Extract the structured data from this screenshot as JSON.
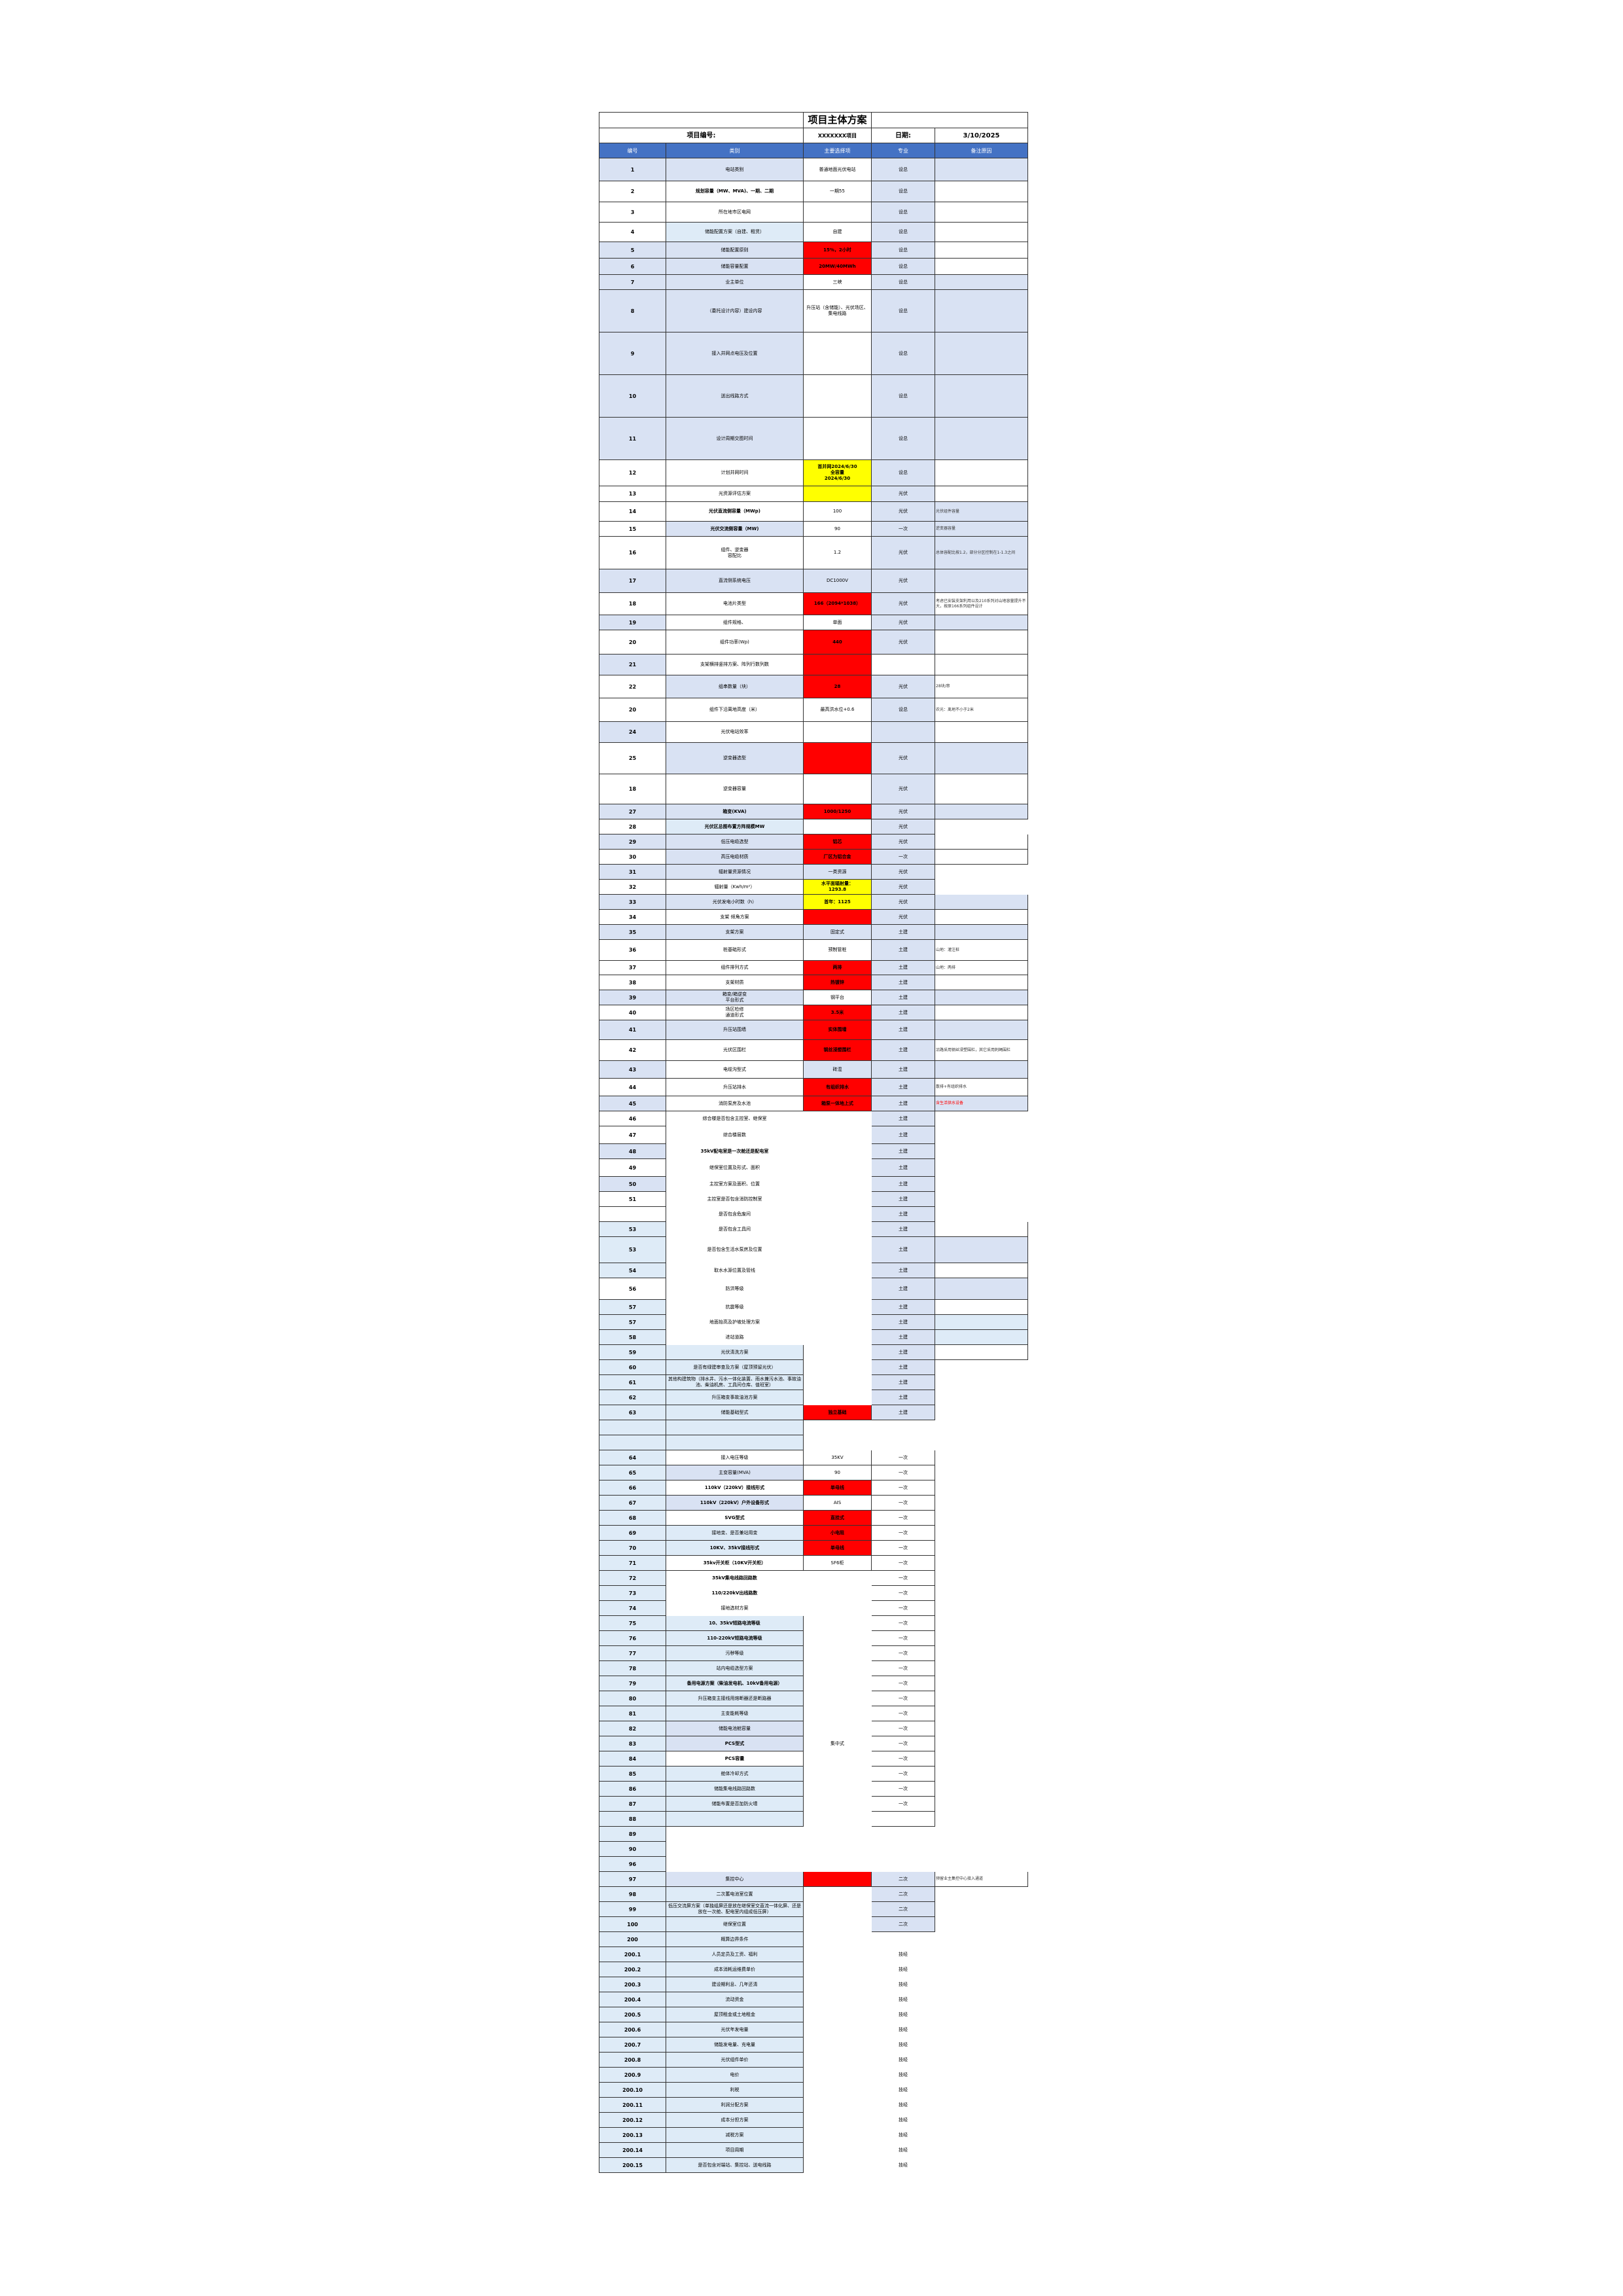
{
  "title": "项目主体方案",
  "project_label": "项目编号:",
  "project_value": "XXXXXXX项目",
  "date_label": "日期:",
  "date_value": "3/10/2025",
  "headers": [
    "编号",
    "类别",
    "主要选择项",
    "专业",
    "备注原因"
  ],
  "colors": {
    "header": "#4472C4",
    "blue": "#D9E2F3",
    "light": "#DEEBF7",
    "white": "#FFFFFF",
    "red": "#FF0000",
    "yellow": "#FFFF00",
    "remark_red": "#FF0000"
  },
  "rows": [
    {
      "no": "1",
      "cat": "电站类别",
      "choice": "普通地面光伏电站",
      "disc": "设总",
      "rem": "",
      "fills": "bbwbb"
    },
    {
      "no": "2",
      "cat": "规划容量（MW、MVA)、一期、二期",
      "choice": "一期55",
      "disc": "设总",
      "rem": "",
      "fills": "wwwbw"
    },
    {
      "no": "3",
      "cat": "所在地市区电网",
      "choice": "",
      "disc": "设总",
      "rem": "",
      "fills": "wwwbw"
    },
    {
      "no": "4",
      "cat": "储能配置方案（自建、租赁）",
      "choice": "自建",
      "disc": "设总",
      "rem": "",
      "fills": "wlwbw"
    },
    {
      "no": "5",
      "cat": "储能配置原则",
      "choice": "15%，2小时",
      "disc": "设总",
      "rem": "",
      "fills": "bbrbw"
    },
    {
      "no": "6",
      "cat": "储能容量配置",
      "choice": "20MW/40MWh",
      "disc": "设总",
      "rem": "",
      "fills": "bbrbw"
    },
    {
      "no": "7",
      "cat": "业主单位",
      "choice": "三峡",
      "disc": "设总",
      "rem": "",
      "fills": "bbwbb"
    },
    {
      "no": "8",
      "cat": "（委托设计内容）建设内容",
      "choice": "升压站（含储能）、光伏场区、集电线路",
      "disc": "设总",
      "rem": "",
      "fills": "bbwbb"
    },
    {
      "no": "9",
      "cat": "接入并网点电压及位置",
      "choice": "",
      "disc": "设总",
      "rem": "",
      "fills": "bbwbb"
    },
    {
      "no": "10",
      "cat": "送出线路方式",
      "choice": "",
      "disc": "设总",
      "rem": "",
      "fills": "bbwbb"
    },
    {
      "no": "11",
      "cat": "设计周期交图时间",
      "choice": "",
      "disc": "设总",
      "rem": "",
      "fills": "bbwbb"
    },
    {
      "no": "12",
      "cat": "计划并网时间",
      "choice": "首并网2024/6/30\n全容量\n2024/6/30",
      "disc": "设总",
      "rem": "",
      "fills": "wwybw"
    },
    {
      "no": "13",
      "cat": "光资源评估方案",
      "choice": "",
      "disc": "光伏",
      "rem": "",
      "fills": "wwybw"
    },
    {
      "no": "14",
      "cat": "光伏直流侧容量（MWp)",
      "choice": "100",
      "disc": "光伏",
      "rem": "光伏组件容量",
      "fills": "wwwbb"
    },
    {
      "no": "15",
      "cat": "光伏交流侧容量（MW)",
      "choice": "90",
      "disc": "一次",
      "rem": "逆变器容量",
      "fills": "wbwbb"
    },
    {
      "no": "16",
      "cat": "组件、逆变器\n容配比",
      "choice": "1.2",
      "disc": "光伏",
      "rem": "总体容配比按1.2，部分分区控制在1-1.3之间",
      "fills": "wwwbb"
    },
    {
      "no": "17",
      "cat": "直流侧系统电压",
      "choice": "DC1000V",
      "disc": "光伏",
      "rem": "",
      "fills": "bbbbb"
    },
    {
      "no": "18",
      "cat": "电池片类型",
      "choice": "166（2094*1038）",
      "disc": "光伏",
      "rem": "考虑已安装支架利用以及210系列对山地容量提升不大，按原166系列组件设计",
      "fills": "wwrbw"
    },
    {
      "no": "19",
      "cat": "组件规格、",
      "choice": "单面",
      "disc": "光伏",
      "rem": "",
      "fills": "bwwbb"
    },
    {
      "no": "20",
      "cat": "组件功率(Wp)",
      "choice": "440",
      "disc": "光伏",
      "rem": "",
      "fills": "wwrbw"
    },
    {
      "no": "21",
      "cat": "支架横排竖排方案、阵列行数列数",
      "choice": "",
      "disc": "",
      "rem": "",
      "fills": "bwrww"
    },
    {
      "no": "22",
      "cat": "组串数量（块）",
      "choice": "28",
      "disc": "光伏",
      "rem": "28块/串",
      "fills": "wbrbw"
    },
    {
      "no": "20",
      "cat": "组件下沿离地高度（米）",
      "choice": "最高洪水位+0.6",
      "disc": "设总",
      "rem": "农光：离地不小于2米",
      "fills": "wwwbw"
    },
    {
      "no": "24",
      "cat": "光伏电站效率",
      "choice": "",
      "disc": "",
      "rem": "",
      "fills": "bwwbw"
    },
    {
      "no": "25",
      "cat": "逆变器选型",
      "choice": "",
      "disc": "光伏",
      "rem": "",
      "fills": "wbrbb"
    },
    {
      "no": "18",
      "cat": "逆变器容量",
      "choice": "",
      "disc": "光伏",
      "rem": "",
      "fills": "wwwbw"
    },
    {
      "no": "27",
      "cat": "箱变(KVA)",
      "choice": "1000/1250",
      "disc": "光伏",
      "rem": "",
      "fills": "bbrbb"
    },
    {
      "no": "28",
      "cat": "光伏区总图布置方阵规模MW",
      "choice": "",
      "disc": "光伏",
      "rem": "",
      "fills": "wlwbn"
    },
    {
      "no": "29",
      "cat": "低压电缆选型",
      "choice": "铝芯",
      "disc": "光伏",
      "rem": "",
      "fills": "bbrbw"
    },
    {
      "no": "30",
      "cat": "高压电缆材质",
      "choice": "厂区为铝合金",
      "disc": "一次",
      "rem": "",
      "fills": "wbrbw"
    },
    {
      "no": "31",
      "cat": "辐射量资源情况",
      "choice": "一类资源",
      "disc": "光伏",
      "rem": "",
      "fills": "bbbbn"
    },
    {
      "no": "32",
      "cat": "辐射量（Kwh/m²）",
      "choice": "水平面辐射量：\n1293.8",
      "disc": "光伏",
      "rem": "",
      "fills": "wwybn"
    },
    {
      "no": "33",
      "cat": "光伏发电小时数（h）",
      "choice": "首年：1125",
      "disc": "光伏",
      "rem": "",
      "fills": "bbybb"
    },
    {
      "no": "34",
      "cat": "支架 倾角方案",
      "choice": "",
      "disc": "光伏",
      "rem": "",
      "fills": "wwrbw"
    },
    {
      "no": "35",
      "cat": "支架方案",
      "choice": "固定式",
      "disc": "土建",
      "rem": "",
      "fills": "bbbbb"
    },
    {
      "no": "36",
      "cat": "桩基础形式",
      "choice": "预制管桩",
      "disc": "土建",
      "rem": "山地：灌注桩",
      "fills": "wwwbw"
    },
    {
      "no": "37",
      "cat": "组件排列方式",
      "choice": "两排",
      "disc": "土建",
      "rem": "山地：两排",
      "fills": "wwrbw"
    },
    {
      "no": "38",
      "cat": "支架材质",
      "choice": "热镀锌",
      "disc": "土建",
      "rem": "",
      "fills": "wwrbw"
    },
    {
      "no": "39",
      "cat": "箱变/箱逆变\n平台形式",
      "choice": "钢平台",
      "disc": "土建",
      "rem": "",
      "fills": "bbwbb"
    },
    {
      "no": "40",
      "cat": "场区检修\n通道形式",
      "choice": "3.5米",
      "disc": "土建",
      "rem": "",
      "fills": "wwrbw"
    },
    {
      "no": "41",
      "cat": "升压站围墙",
      "choice": "实体围墙",
      "disc": "土建",
      "rem": "",
      "fills": "bbrbb"
    },
    {
      "no": "42",
      "cat": "光伏区围栏",
      "choice": "钢丝浸塑围栏",
      "disc": "土建",
      "rem": "沿路采用钢丝浸塑围栏，其它采用刺绳围栏",
      "fills": "wwrbw"
    },
    {
      "no": "43",
      "cat": "电缆沟型式",
      "choice": "砖混",
      "disc": "土建",
      "rem": "",
      "fills": "bwbbb"
    },
    {
      "no": "44",
      "cat": "升压站排水",
      "choice": "有组织排水",
      "disc": "土建",
      "rem": "散排+有组织排水",
      "fills": "wwrbw"
    },
    {
      "no": "45",
      "cat": "消防泵房及水池",
      "choice": "箱泵一体地上式",
      "disc": "土建",
      "rem": "含生活供水设备",
      "fills": "bwrbb",
      "rem_red": true
    },
    {
      "no": "46",
      "cat": "综合楼是否包含主控室、继保室",
      "choice": "",
      "disc": "土建",
      "rem": "",
      "fills": "wnnbn"
    },
    {
      "no": "47",
      "cat": "综合楼层数",
      "choice": "",
      "disc": "土建",
      "rem": "",
      "fills": "wnnbn"
    },
    {
      "no": "48",
      "cat": "35kV配电室是一次舱还是配电室",
      "choice": "",
      "disc": "土建",
      "rem": "",
      "fills": "bnnbn"
    },
    {
      "no": "49",
      "cat": "继保室位置及形式、面积",
      "choice": "",
      "disc": "土建",
      "rem": "",
      "fills": "wnnbn"
    },
    {
      "no": "50",
      "cat": "主控室方案及面积、位置",
      "choice": "",
      "disc": "土建",
      "rem": "",
      "fills": "bnnbn"
    },
    {
      "no": "51",
      "cat": "主控室是否包含消防控制室",
      "choice": "",
      "disc": "土建",
      "rem": "",
      "fills": "wnnbn"
    },
    {
      "no": "",
      "cat": "是否包含危废间",
      "choice": "",
      "disc": "土建",
      "rem": "",
      "fills": "wnnbn"
    },
    {
      "no": "53",
      "cat": "是否包含工具间",
      "choice": "",
      "disc": "土建",
      "rem": "",
      "fills": "lnnbw"
    },
    {
      "no": "53",
      "cat": "是否包含生活水泵房及位置",
      "choice": "",
      "disc": "土建",
      "rem": "",
      "fills": "lnnbb"
    },
    {
      "no": "54",
      "cat": "取水水源位置及管线",
      "choice": "",
      "disc": "土建",
      "rem": "",
      "fills": "lnnbw"
    },
    {
      "no": "56",
      "cat": "防洪等级",
      "choice": "",
      "disc": "土建",
      "rem": "",
      "fills": "wnnbb"
    },
    {
      "no": "57",
      "cat": "抗震等级",
      "choice": "",
      "disc": "土建",
      "rem": "",
      "fills": "lnnbw"
    },
    {
      "no": "57",
      "cat": "地面抬高及护坡处理方案",
      "choice": "",
      "disc": "土建",
      "rem": "",
      "fills": "lnnbl"
    },
    {
      "no": "58",
      "cat": "进站道路",
      "choice": "",
      "disc": "土建",
      "rem": "",
      "fills": "lnnbl"
    },
    {
      "no": "59",
      "cat": "光伏清洗方案",
      "choice": "",
      "disc": "土建",
      "rem": "",
      "fills": "llnbw"
    },
    {
      "no": "60",
      "cat": "是否有绿建审查及方案（屋顶预留光伏）",
      "choice": "",
      "disc": "土建",
      "rem": "",
      "fills": "llnbn"
    },
    {
      "no": "61",
      "cat": "其他构建筑物（排水井、污水一体化装置、雨水兼污水池、事故油池、柴油机房、工具间仓库、值班室）",
      "choice": "",
      "disc": "土建",
      "rem": "",
      "fills": "llnbn"
    },
    {
      "no": "62",
      "cat": "升压箱变事故油池方案",
      "choice": "",
      "disc": "土建",
      "rem": "",
      "fills": "llnbn"
    },
    {
      "no": "63",
      "cat": "储能基础型式",
      "choice": "独立基础",
      "disc": "土建",
      "rem": "",
      "fills": "llrbn"
    },
    {
      "no": "",
      "cat": "",
      "choice": "",
      "disc": "",
      "rem": "",
      "fills": "llnnn"
    },
    {
      "no": "",
      "cat": "",
      "choice": "",
      "disc": "",
      "rem": "",
      "fills": "llnnn"
    },
    {
      "no": "64",
      "cat": "接入电压等级",
      "choice": "35KV",
      "disc": "一次",
      "rem": "",
      "fills": "lwwwn"
    },
    {
      "no": "65",
      "cat": "主变容量(MVA)",
      "choice": "90",
      "disc": "一次",
      "rem": "",
      "fills": "lbwwn"
    },
    {
      "no": "66",
      "cat": "110kV（220kV）接线形式",
      "choice": "单母线",
      "disc": "一次",
      "rem": "",
      "fills": "lwrwn"
    },
    {
      "no": "67",
      "cat": "110kV（220kV）户外设备形式",
      "choice": "AIS",
      "disc": "一次",
      "rem": "",
      "fills": "lbwwn"
    },
    {
      "no": "68",
      "cat": "SVG型式",
      "choice": "直挂式",
      "disc": "一次",
      "rem": "",
      "fills": "lwrwn"
    },
    {
      "no": "69",
      "cat": "接地变、是否兼站用变",
      "choice": "小电阻",
      "disc": "一次",
      "rem": "",
      "fills": "llrwn"
    },
    {
      "no": "70",
      "cat": "10KV、35kV接线形式",
      "choice": "单母线",
      "disc": "一次",
      "rem": "",
      "fills": "llrwn"
    },
    {
      "no": "71",
      "cat": "35kv开关柜（10KV开关柜）",
      "choice": "SF6柜",
      "disc": "一次",
      "rem": "",
      "fills": "lwwwn"
    },
    {
      "no": "72",
      "cat": "35kV集电线路回路数",
      "choice": "",
      "disc": "一次",
      "rem": "",
      "fills": "lnnwn"
    },
    {
      "no": "73",
      "cat": "110/220kV出线路数",
      "choice": "",
      "disc": "一次",
      "rem": "",
      "fills": "lnnwn"
    },
    {
      "no": "74",
      "cat": "接地选材方案",
      "choice": "",
      "disc": "一次",
      "rem": "",
      "fills": "lnnwn"
    },
    {
      "no": "75",
      "cat": "10、35kV短路电流等级",
      "choice": "",
      "disc": "一次",
      "rem": "",
      "fills": "llnwn"
    },
    {
      "no": "76",
      "cat": "110-220kV短路电流等级",
      "choice": "",
      "disc": "一次",
      "rem": "",
      "fills": "llnwn"
    },
    {
      "no": "77",
      "cat": "污秽等级",
      "choice": "",
      "disc": "一次",
      "rem": "",
      "fills": "llnwn"
    },
    {
      "no": "78",
      "cat": "站内电缆选型方案",
      "choice": "",
      "disc": "一次",
      "rem": "",
      "fills": "llnwn"
    },
    {
      "no": "79",
      "cat": "备用电源方案（柴油发电机、10kV备用电源）",
      "choice": "",
      "disc": "一次",
      "rem": "",
      "fills": "llnwn"
    },
    {
      "no": "80",
      "cat": "升压箱变主接线用熔断器还是断路器",
      "choice": "",
      "disc": "一次",
      "rem": "",
      "fills": "llnwn"
    },
    {
      "no": "81",
      "cat": "主变能耗等级",
      "choice": "",
      "disc": "一次",
      "rem": "",
      "fills": "llnwn"
    },
    {
      "no": "82",
      "cat": "储能电池舱容量",
      "choice": "",
      "disc": "一次",
      "rem": "",
      "fills": "lbnwn"
    },
    {
      "no": "83",
      "cat": "PCS型式",
      "choice": "集中式",
      "disc": "一次",
      "rem": "",
      "fills": "lbnwn"
    },
    {
      "no": "84",
      "cat": "PCS容量",
      "choice": "",
      "disc": "一次",
      "rem": "",
      "fills": "lwnwn"
    },
    {
      "no": "85",
      "cat": "舱体冷却方式",
      "choice": "",
      "disc": "一次",
      "rem": "",
      "fills": "llnwn"
    },
    {
      "no": "86",
      "cat": "储能集电线路回路数",
      "choice": "",
      "disc": "一次",
      "rem": "",
      "fills": "llnwn"
    },
    {
      "no": "87",
      "cat": "储能布置是否加防火墙",
      "choice": "",
      "disc": "一次",
      "rem": "",
      "fills": "llnwn"
    },
    {
      "no": "88",
      "cat": "",
      "choice": "",
      "disc": "",
      "rem": "",
      "fills": "llnwn"
    },
    {
      "no": "89",
      "cat": "",
      "choice": "",
      "disc": "",
      "rem": "",
      "fills": "lnnnn"
    },
    {
      "no": "90",
      "cat": "",
      "choice": "",
      "disc": "",
      "rem": "",
      "fills": "lnnnn"
    },
    {
      "no": "96",
      "cat": "",
      "choice": "",
      "disc": "",
      "rem": "",
      "fills": "lnnnn"
    },
    {
      "no": "97",
      "cat": "集控中心",
      "choice": "",
      "disc": "二次",
      "rem": "预留业主集控中心接入通道",
      "fills": "lbrbw"
    },
    {
      "no": "98",
      "cat": "二次蓄电池室位置",
      "choice": "",
      "disc": "二次",
      "rem": "",
      "fills": "llnbn"
    },
    {
      "no": "99",
      "cat": "低压交流屏方案（单独组屏还是放在继保室交直流一体化屏、还是放在一次舱、配电室内组成低压屏）",
      "choice": "",
      "disc": "二次",
      "rem": "",
      "fills": "llnbn"
    },
    {
      "no": "100",
      "cat": "继保室位置",
      "choice": "",
      "disc": "二次",
      "rem": "",
      "fills": "llnbn"
    },
    {
      "no": "200",
      "cat": "概算边界条件",
      "choice": "",
      "disc": "",
      "rem": "",
      "fills": "llnnn"
    },
    {
      "no": "200.1",
      "cat": "人员定员及工资、福利",
      "choice": "",
      "disc": "技经",
      "rem": "",
      "fills": "llnnn"
    },
    {
      "no": "200.2",
      "cat": "成本消耗运维费单价",
      "choice": "",
      "disc": "技经",
      "rem": "",
      "fills": "llnnn"
    },
    {
      "no": "200.3",
      "cat": "建设期利息、几年还清",
      "choice": "",
      "disc": "技经",
      "rem": "",
      "fills": "llnnn"
    },
    {
      "no": "200.4",
      "cat": "流动资金",
      "choice": "",
      "disc": "技经",
      "rem": "",
      "fills": "llnnn"
    },
    {
      "no": "200.5",
      "cat": "屋顶租金或土地租金",
      "choice": "",
      "disc": "技经",
      "rem": "",
      "fills": "llnnn"
    },
    {
      "no": "200.6",
      "cat": "光伏年发电量",
      "choice": "",
      "disc": "技经",
      "rem": "",
      "fills": "llnnn"
    },
    {
      "no": "200.7",
      "cat": "储能发电量、充电量",
      "choice": "",
      "disc": "技经",
      "rem": "",
      "fills": "llnnn"
    },
    {
      "no": "200.8",
      "cat": "光伏组件单价",
      "choice": "",
      "disc": "技经",
      "rem": "",
      "fills": "llnnn"
    },
    {
      "no": "200.9",
      "cat": "电价",
      "choice": "",
      "disc": "技经",
      "rem": "",
      "fills": "llnnn"
    },
    {
      "no": "200.10",
      "cat": "利税",
      "choice": "",
      "disc": "技经",
      "rem": "",
      "fills": "llnnn"
    },
    {
      "no": "200.11",
      "cat": "利润分配方案",
      "choice": "",
      "disc": "技经",
      "rem": "",
      "fills": "llnnn"
    },
    {
      "no": "200.12",
      "cat": "成本分担方案",
      "choice": "",
      "disc": "技经",
      "rem": "",
      "fills": "llnnn"
    },
    {
      "no": "200.13",
      "cat": "减税方案",
      "choice": "",
      "disc": "技经",
      "rem": "",
      "fills": "llnnn"
    },
    {
      "no": "200.14",
      "cat": "项目周期",
      "choice": "",
      "disc": "技经",
      "rem": "",
      "fills": "llnnn"
    },
    {
      "no": "200.15",
      "cat": "是否包含对端站、集控站、送电线路",
      "choice": "",
      "disc": "技经",
      "rem": "",
      "fills": "llnnn"
    }
  ]
}
